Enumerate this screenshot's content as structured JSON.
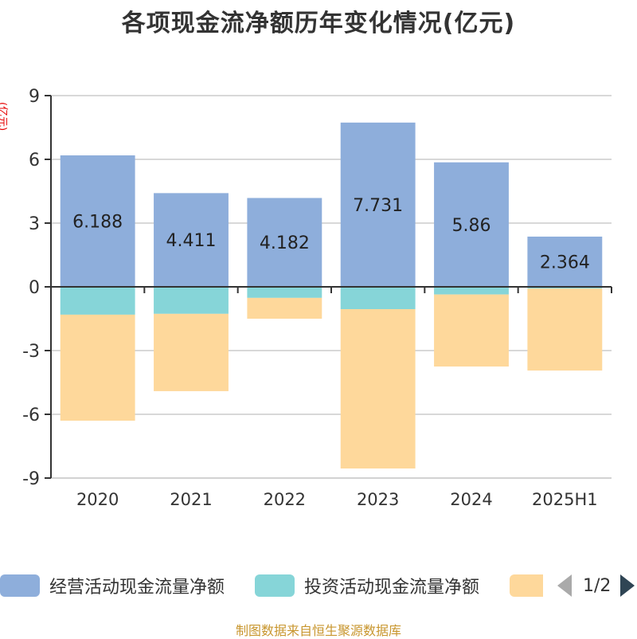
{
  "chart_data": {
    "type": "bar",
    "stacked": true,
    "title": "各项现金流净额历年变化情况(亿元)",
    "ylabel": "(亿元)",
    "xlabel": "",
    "ylim": [
      -9,
      9
    ],
    "yticks": [
      9,
      6,
      3,
      0,
      -3,
      -6,
      -9
    ],
    "grid": true,
    "categories": [
      "2020",
      "2021",
      "2022",
      "2023",
      "2024",
      "2025H1"
    ],
    "series": [
      {
        "name": "经营活动现金流量净额",
        "color": "#8eaedb",
        "values": [
          6.188,
          4.411,
          4.182,
          7.731,
          5.86,
          2.364
        ],
        "labels": [
          "6.188",
          "4.411",
          "4.182",
          "7.731",
          "5.86",
          "2.364"
        ]
      },
      {
        "name": "投资活动现金流量净额",
        "color": "#86d5d8",
        "values": [
          -1.31,
          -1.27,
          -0.52,
          -1.05,
          -0.36,
          -0.08
        ]
      },
      {
        "name": "",
        "color": "#fed89b",
        "values": [
          -4.99,
          -3.64,
          -0.98,
          -7.5,
          -3.39,
          -3.86
        ]
      }
    ],
    "legend_position": "bottom"
  },
  "legend": {
    "items": [
      {
        "label": "经营活动现金流量净额",
        "color": "#8eaedb"
      },
      {
        "label": "投资活动现金流量净额",
        "color": "#86d5d8"
      },
      {
        "label": "",
        "color": "#fed89b"
      }
    ],
    "page": "1/2"
  },
  "footer": "制图数据来自恒生聚源数据库"
}
